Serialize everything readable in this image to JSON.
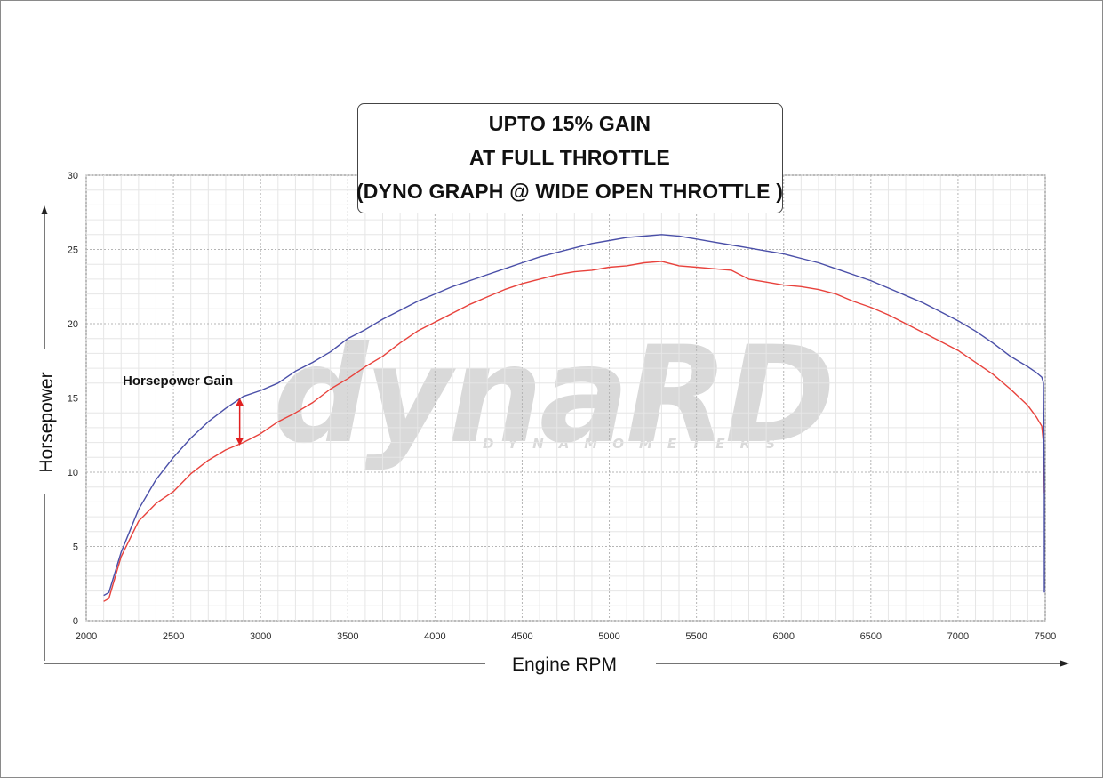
{
  "chart_data": {
    "type": "line",
    "title": [
      "UPTO 15% GAIN",
      "AT FULL THROTTLE",
      "(DYNO GRAPH @ WIDE OPEN THROTTLE )"
    ],
    "xlabel": "Engine RPM",
    "ylabel": "Horsepower",
    "xlim": [
      2000,
      7500
    ],
    "ylim": [
      0,
      30
    ],
    "xticks": [
      2000,
      2500,
      3000,
      3500,
      4000,
      4500,
      5000,
      5500,
      6000,
      6500,
      7000,
      7500
    ],
    "yticks": [
      0,
      5,
      10,
      15,
      20,
      25,
      30
    ],
    "grid": true,
    "series": [
      {
        "color": "#4a4fa8",
        "x": [
          2100,
          2130,
          2200,
          2300,
          2400,
          2500,
          2600,
          2700,
          2800,
          2900,
          3000,
          3100,
          3200,
          3300,
          3400,
          3500,
          3600,
          3700,
          3800,
          3900,
          4000,
          4100,
          4200,
          4300,
          4400,
          4500,
          4600,
          4700,
          4800,
          4900,
          5000,
          5100,
          5200,
          5300,
          5400,
          5500,
          5600,
          5700,
          5800,
          5900,
          6000,
          6100,
          6200,
          6300,
          6400,
          6500,
          6600,
          6700,
          6800,
          6900,
          7000,
          7100,
          7200,
          7300,
          7400,
          7450,
          7480,
          7490,
          7495,
          7495
        ],
        "y": [
          1.7,
          1.9,
          4.6,
          7.5,
          9.5,
          11.0,
          12.3,
          13.4,
          14.3,
          15.1,
          15.5,
          16.0,
          16.8,
          17.4,
          18.1,
          19.0,
          19.6,
          20.3,
          20.9,
          21.5,
          22.0,
          22.5,
          22.9,
          23.3,
          23.7,
          24.1,
          24.5,
          24.8,
          25.1,
          25.4,
          25.6,
          25.8,
          25.9,
          26.0,
          25.9,
          25.7,
          25.5,
          25.3,
          25.1,
          24.9,
          24.7,
          24.4,
          24.1,
          23.7,
          23.3,
          22.9,
          22.4,
          21.9,
          21.4,
          20.8,
          20.2,
          19.5,
          18.7,
          17.8,
          17.1,
          16.7,
          16.4,
          16.0,
          9.0,
          1.9
        ]
      },
      {
        "color": "#e8423c",
        "x": [
          2100,
          2130,
          2200,
          2300,
          2400,
          2500,
          2600,
          2700,
          2800,
          2900,
          3000,
          3100,
          3200,
          3300,
          3400,
          3500,
          3600,
          3700,
          3800,
          3900,
          4000,
          4100,
          4200,
          4300,
          4400,
          4500,
          4600,
          4700,
          4800,
          4900,
          5000,
          5100,
          5200,
          5300,
          5400,
          5500,
          5600,
          5700,
          5800,
          5900,
          6000,
          6100,
          6200,
          6300,
          6400,
          6500,
          6600,
          6700,
          6800,
          6900,
          7000,
          7100,
          7200,
          7300,
          7400,
          7450,
          7480,
          7490,
          7495
        ],
        "y": [
          1.3,
          1.5,
          4.3,
          6.7,
          7.9,
          8.7,
          9.9,
          10.8,
          11.5,
          12.0,
          12.6,
          13.4,
          14.0,
          14.7,
          15.6,
          16.3,
          17.1,
          17.8,
          18.7,
          19.5,
          20.1,
          20.7,
          21.3,
          21.8,
          22.3,
          22.7,
          23.0,
          23.3,
          23.5,
          23.6,
          23.8,
          23.9,
          24.1,
          24.2,
          23.9,
          23.8,
          23.7,
          23.6,
          23.0,
          22.8,
          22.6,
          22.5,
          22.3,
          22.0,
          21.5,
          21.1,
          20.6,
          20.0,
          19.4,
          18.8,
          18.2,
          17.4,
          16.6,
          15.6,
          14.5,
          13.7,
          13.1,
          12.0,
          8.6
        ]
      }
    ],
    "annotations": [
      {
        "text": "Horsepower Gain",
        "at_x": 2880,
        "from_y": 15.0,
        "to_y": 11.8,
        "arrow_color": "#e02020"
      }
    ]
  },
  "watermark": {
    "main": "dynaRD",
    "sub": "DYNAMOMETERS"
  },
  "colors": {
    "grid": "#c9c9c9",
    "title_box_border": "#444444",
    "axis_arrow": "#222222"
  }
}
